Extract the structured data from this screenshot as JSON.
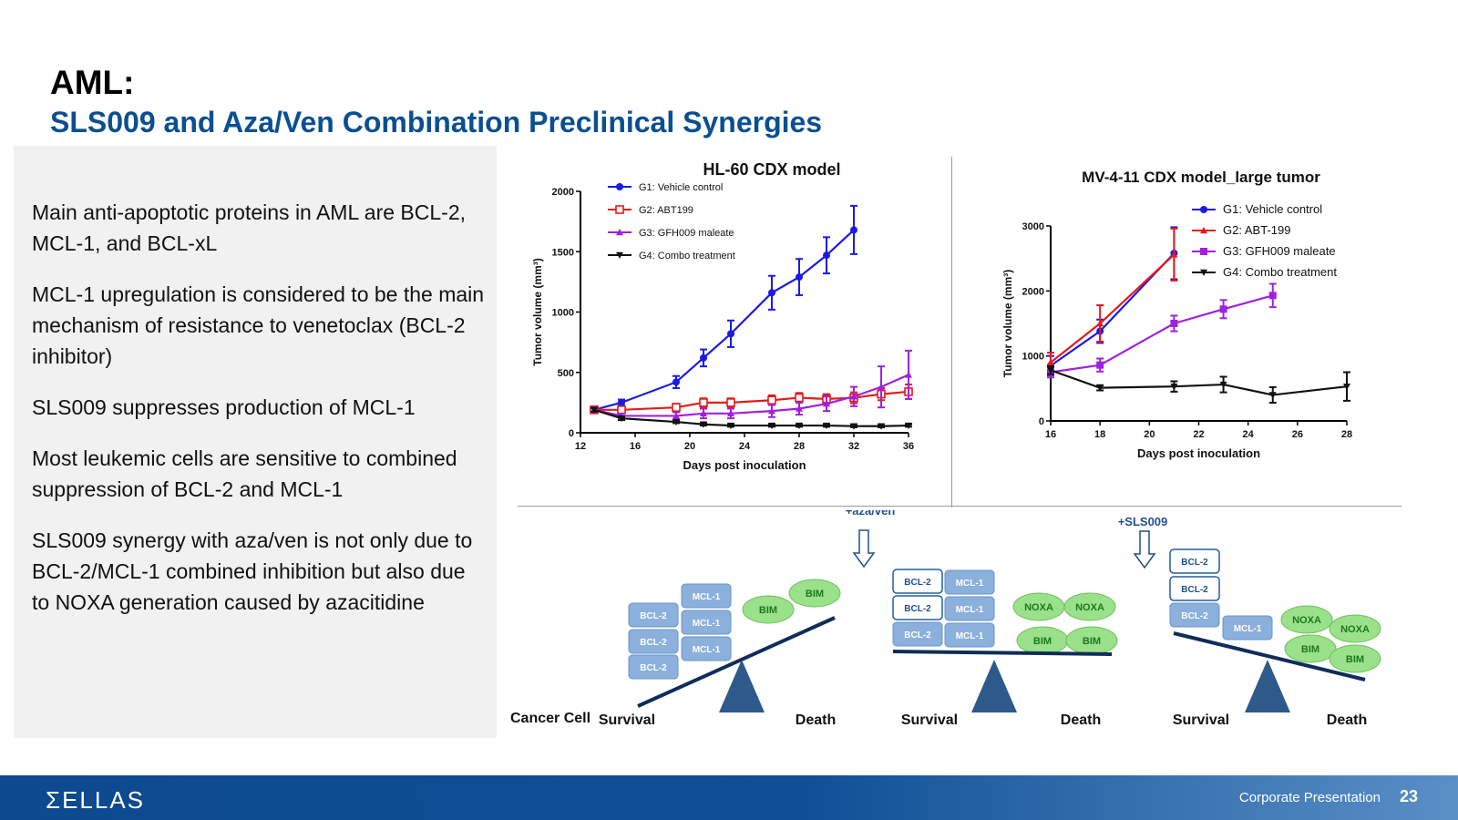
{
  "header": {
    "title": "AML:",
    "subtitle": "SLS009 and Aza/Ven Combination Preclinical Synergies"
  },
  "bullets": [
    "Main anti-apoptotic proteins in AML are BCL-2, MCL-1, and BCL-xL",
    "MCL-1 upregulation is considered to be the main mechanism of resistance to venetoclax (BCL-2 inhibitor)",
    "SLS009 suppresses production of MCL-1",
    "Most leukemic cells are sensitive to combined suppression of BCL-2 and MCL-1",
    "SLS009 synergy with aza/ven is not only due to BCL-2/MCL-1 combined inhibition but also due to NOXA generation caused by azacitidine"
  ],
  "chart_data": [
    {
      "type": "line",
      "title": "HL-60 CDX model",
      "xlabel": "Days post inoculation",
      "ylabel": "Tumor volume (mm³)",
      "xlim": [
        12,
        36
      ],
      "ylim": [
        0,
        2000
      ],
      "xticks": [
        12,
        16,
        20,
        24,
        28,
        32,
        36
      ],
      "yticks": [
        0,
        500,
        1000,
        1500,
        2000
      ],
      "legend_position": "top-left",
      "series": [
        {
          "name": "G1: Vehicle control",
          "color": "#1a1ae6",
          "marker": "circle-filled",
          "x": [
            13,
            15,
            19,
            21,
            23,
            26,
            28,
            30,
            32
          ],
          "y": [
            190,
            250,
            420,
            620,
            820,
            1160,
            1290,
            1470,
            1680
          ],
          "err": [
            20,
            25,
            50,
            70,
            110,
            140,
            150,
            150,
            200
          ]
        },
        {
          "name": "G2: ABT199",
          "color": "#e61a1a",
          "marker": "square-open",
          "x": [
            13,
            15,
            19,
            21,
            23,
            26,
            28,
            30,
            32,
            34,
            36
          ],
          "y": [
            190,
            190,
            210,
            250,
            250,
            270,
            290,
            280,
            290,
            320,
            340
          ],
          "err": [
            20,
            20,
            30,
            35,
            35,
            40,
            40,
            40,
            45,
            50,
            60
          ]
        },
        {
          "name": "G3: GFH009 maleate",
          "color": "#a020e0",
          "marker": "triangle-filled",
          "x": [
            13,
            15,
            19,
            21,
            23,
            26,
            28,
            30,
            32,
            34,
            36
          ],
          "y": [
            190,
            140,
            140,
            160,
            160,
            180,
            200,
            240,
            300,
            380,
            480
          ],
          "err": [
            20,
            20,
            30,
            40,
            40,
            50,
            50,
            60,
            80,
            170,
            200
          ]
        },
        {
          "name": "G4: Combo treatment",
          "color": "#111111",
          "marker": "triangle-down-filled",
          "x": [
            13,
            15,
            19,
            21,
            23,
            26,
            28,
            30,
            32,
            34,
            36
          ],
          "y": [
            190,
            120,
            90,
            70,
            60,
            60,
            60,
            60,
            55,
            55,
            60
          ],
          "err": [
            15,
            15,
            10,
            10,
            10,
            10,
            10,
            10,
            10,
            10,
            10
          ]
        }
      ]
    },
    {
      "type": "line",
      "title": "MV-4-11 CDX model_large tumor",
      "xlabel": "Days post inoculation",
      "ylabel": "Tumor volume (mm³)",
      "xlim": [
        16,
        28
      ],
      "ylim": [
        0,
        3000
      ],
      "xticks": [
        16,
        18,
        20,
        22,
        24,
        26,
        28
      ],
      "yticks": [
        0,
        1000,
        2000,
        3000
      ],
      "legend_position": "top-right",
      "series": [
        {
          "name": "G1: Vehicle control",
          "color": "#1a1ae6",
          "marker": "circle-filled",
          "x": [
            16,
            18,
            21
          ],
          "y": [
            850,
            1380,
            2580
          ],
          "err": [
            150,
            180,
            400
          ]
        },
        {
          "name": "G2: ABT-199",
          "color": "#e61a1a",
          "marker": "triangle-filled",
          "x": [
            16,
            18,
            21
          ],
          "y": [
            900,
            1500,
            2560
          ],
          "err": [
            150,
            280,
            400
          ]
        },
        {
          "name": "G3: GFH009 maleate",
          "color": "#a020e0",
          "marker": "square-filled",
          "x": [
            16,
            18,
            21,
            23,
            25
          ],
          "y": [
            750,
            860,
            1500,
            1720,
            1930
          ],
          "err": [
            80,
            100,
            120,
            140,
            180
          ]
        },
        {
          "name": "G4: Combo treatment",
          "color": "#111111",
          "marker": "triangle-down-filled",
          "x": [
            16,
            18,
            21,
            23,
            25,
            28
          ],
          "y": [
            780,
            510,
            530,
            560,
            400,
            530
          ],
          "err": [
            60,
            40,
            80,
            120,
            120,
            220
          ]
        }
      ]
    }
  ],
  "diagram": {
    "cancer_cell_label": "Cancer Cell",
    "survival_label": "Survival",
    "death_label": "Death",
    "arrow1_label": "+aza/ven",
    "arrow2_label": "+SLS009",
    "bcl2": "BCL-2",
    "mcl1": "MCL-1",
    "bim": "BIM",
    "noxa": "NOXA"
  },
  "footer": {
    "logo": "ΣELLAS",
    "label": "Corporate Presentation",
    "page": "23"
  },
  "colors": {
    "brand_blue": "#0a4f92",
    "panel_gray": "#f1f1f1",
    "box_blue": "#7fa8d6",
    "ellipse_green": "#8fd67a",
    "beam_navy": "#0f2d5a"
  }
}
